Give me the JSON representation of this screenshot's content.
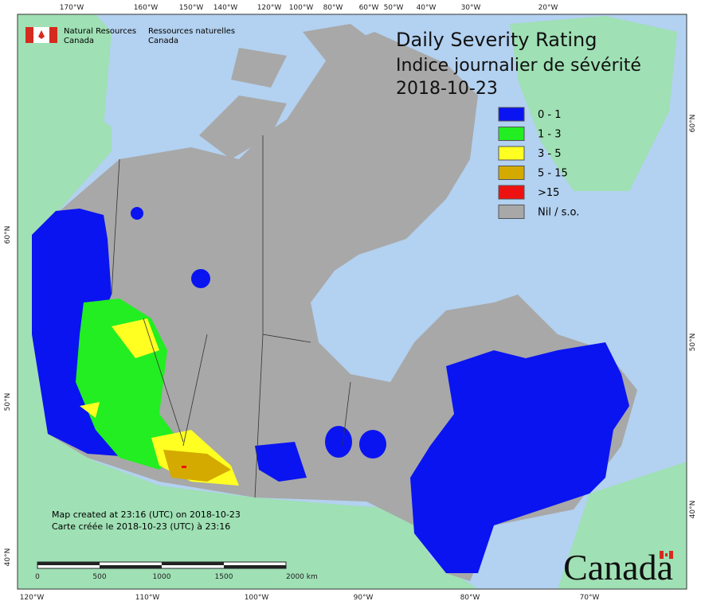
{
  "graticule": {
    "top": [
      "170°W",
      "160°W",
      "150°W",
      "140°W",
      "120°W",
      "100°W",
      "80°W",
      "60°W",
      "50°W",
      "40°W",
      "30°W",
      "20°W"
    ],
    "bottom": [
      "120°W",
      "110°W",
      "100°W",
      "90°W",
      "80°W",
      "70°W"
    ],
    "left": [
      "60°N",
      "50°N",
      "40°N"
    ],
    "right": [
      "60°N",
      "50°N",
      "40°N"
    ]
  },
  "agency": {
    "en_1": "Natural Resources",
    "en_2": "Canada",
    "fr_1": "Ressources naturelles",
    "fr_2": "Canada"
  },
  "title": {
    "line1": "Daily Severity Rating",
    "line2": "Indice journalier de sévérité",
    "date": "2018-10-23"
  },
  "legend": [
    {
      "label": "0 - 1",
      "color": "#0a14f0"
    },
    {
      "label": "1 - 3",
      "color": "#22ee22"
    },
    {
      "label": "3 - 5",
      "color": "#ffff22"
    },
    {
      "label": "5 - 15",
      "color": "#d4aa00"
    },
    {
      "label": ">15",
      "color": "#ee1111"
    },
    {
      "label": "Nil / s.o.",
      "color": "#a8a8a8"
    }
  ],
  "notes": {
    "en": "Map created at 23:16 (UTC) on 2018-10-23",
    "fr": "Carte créée le 2018-10-23 (UTC) à 23:16"
  },
  "scale": [
    "0",
    "500",
    "1000",
    "1500",
    "2000 km"
  ],
  "wordmark": "Canada"
}
